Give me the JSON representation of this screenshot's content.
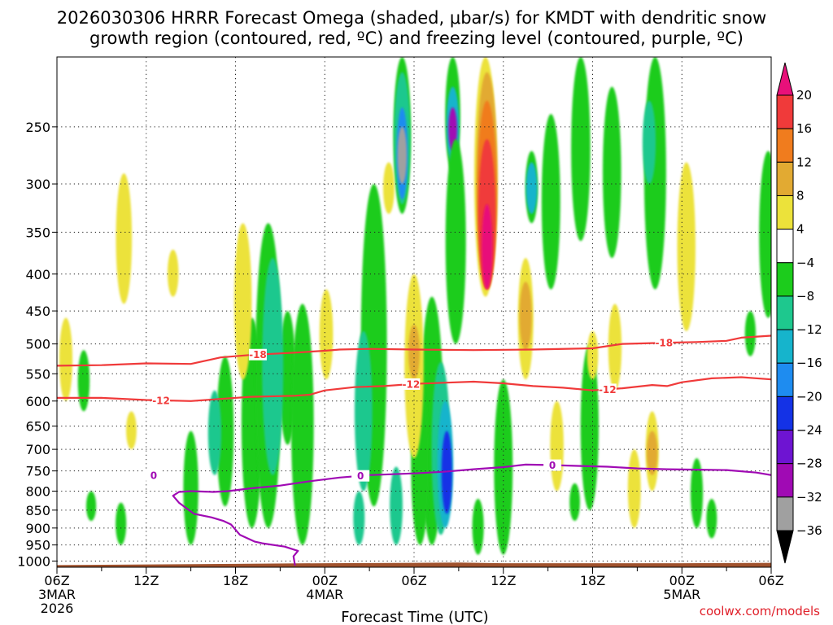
{
  "chart_data": {
    "type": "heatmap",
    "title_line1": "2026030306 HRRR Forecast Omega (shaded, μbar/s) for KMDT with dendritic snow",
    "title_line2": "growth region (contoured, red, ºC) and freezing level (contoured, purple, ºC)",
    "xlabel": "Forecast Time (UTC)",
    "credit": "coolwx.com/models",
    "y_axis": {
      "scale": "log-pressure",
      "reversed": true,
      "ylim": [
        200,
        1020
      ],
      "ticks": [
        250,
        300,
        350,
        400,
        450,
        500,
        550,
        600,
        650,
        700,
        750,
        800,
        850,
        900,
        950,
        1000
      ]
    },
    "x_axis": {
      "xlim": [
        0,
        48
      ],
      "ticks": [
        {
          "hour": 0,
          "label": "06Z",
          "date": "3MAR",
          "year": "2026"
        },
        {
          "hour": 6,
          "label": "12Z"
        },
        {
          "hour": 12,
          "label": "18Z"
        },
        {
          "hour": 18,
          "label": "00Z",
          "date": "4MAR"
        },
        {
          "hour": 24,
          "label": "06Z"
        },
        {
          "hour": 30,
          "label": "12Z"
        },
        {
          "hour": 36,
          "label": "18Z"
        },
        {
          "hour": 42,
          "label": "00Z",
          "date": "5MAR"
        },
        {
          "hour": 48,
          "label": "06Z"
        }
      ],
      "minor_hours": [
        3,
        9,
        15,
        21,
        27,
        33,
        39,
        45
      ]
    },
    "grid": true,
    "colorbar": {
      "placement": "right",
      "labels": [
        "20",
        "16",
        "12",
        "8",
        "4",
        "−4",
        "−8",
        "−12",
        "−16",
        "−20",
        "−24",
        "−28",
        "−32",
        "−36"
      ],
      "label_values": [
        20,
        16,
        12,
        8,
        4,
        -4,
        -8,
        -12,
        -16,
        -20,
        -24,
        -28,
        -32,
        -36
      ],
      "levels": [
        {
          "min": 20,
          "max": 99,
          "color": "#e8107a"
        },
        {
          "min": 16,
          "max": 20,
          "color": "#f03a3a"
        },
        {
          "min": 12,
          "max": 16,
          "color": "#f07c1e"
        },
        {
          "min": 8,
          "max": 12,
          "color": "#e2aa32"
        },
        {
          "min": 4,
          "max": 8,
          "color": "#ece23a"
        },
        {
          "min": -4,
          "max": 4,
          "color": "#ffffff"
        },
        {
          "min": -8,
          "max": -4,
          "color": "#1ccc1c"
        },
        {
          "min": -12,
          "max": -8,
          "color": "#1ec88e"
        },
        {
          "min": -16,
          "max": -12,
          "color": "#16b4cc"
        },
        {
          "min": -20,
          "max": -16,
          "color": "#1e8cf0"
        },
        {
          "min": -24,
          "max": -20,
          "color": "#1432e6"
        },
        {
          "min": -28,
          "max": -24,
          "color": "#6e14d2"
        },
        {
          "min": -32,
          "max": -28,
          "color": "#a00ab4"
        },
        {
          "min": -36,
          "max": -32,
          "color": "#a0a0a0"
        },
        {
          "min": -99,
          "max": -36,
          "color": "#000000"
        }
      ]
    },
    "omega_features": [
      {
        "hour": 21.3,
        "p0": 300,
        "p1": 840,
        "value": -6
      },
      {
        "hour": 20.6,
        "p0": 480,
        "p1": 800,
        "value": -10
      },
      {
        "hour": 11.3,
        "p0": 520,
        "p1": 840,
        "value": -6
      },
      {
        "hour": 10.6,
        "p0": 580,
        "p1": 760,
        "value": -10
      },
      {
        "hour": 13.1,
        "p0": 460,
        "p1": 900,
        "value": -6
      },
      {
        "hour": 15.5,
        "p0": 450,
        "p1": 690,
        "value": -6
      },
      {
        "hour": 14.2,
        "p0": 340,
        "p1": 900,
        "value": -5
      },
      {
        "hour": 14.5,
        "p0": 380,
        "p1": 760,
        "value": -9
      },
      {
        "hour": 16.5,
        "p0": 440,
        "p1": 950,
        "value": -5
      },
      {
        "hour": 23.2,
        "p0": 200,
        "p1": 330,
        "value": -6
      },
      {
        "hour": 23.2,
        "p0": 210,
        "p1": 320,
        "value": -10
      },
      {
        "hour": 23.2,
        "p0": 235,
        "p1": 315,
        "value": -20
      },
      {
        "hour": 23.2,
        "p0": 250,
        "p1": 300,
        "value": -34
      },
      {
        "hour": 26.6,
        "p0": 200,
        "p1": 290,
        "value": -6
      },
      {
        "hour": 26.6,
        "p0": 220,
        "p1": 280,
        "value": -14
      },
      {
        "hour": 26.6,
        "p0": 235,
        "p1": 270,
        "value": -30
      },
      {
        "hour": 25.2,
        "p0": 430,
        "p1": 950,
        "value": -6
      },
      {
        "hour": 25.8,
        "p0": 530,
        "p1": 920,
        "value": -10
      },
      {
        "hour": 26.1,
        "p0": 600,
        "p1": 900,
        "value": -16
      },
      {
        "hour": 26.2,
        "p0": 660,
        "p1": 860,
        "value": -24
      },
      {
        "hour": 24.4,
        "p0": 560,
        "p1": 950,
        "value": -8
      },
      {
        "hour": 22.8,
        "p0": 740,
        "p1": 950,
        "value": -10
      },
      {
        "hour": 20.3,
        "p0": 800,
        "p1": 950,
        "value": -9
      },
      {
        "hour": 31.9,
        "p0": 270,
        "p1": 340,
        "value": -6
      },
      {
        "hour": 31.9,
        "p0": 280,
        "p1": 330,
        "value": -14
      },
      {
        "hour": 35.2,
        "p0": 200,
        "p1": 360,
        "value": -6
      },
      {
        "hour": 33.2,
        "p0": 240,
        "p1": 420,
        "value": -6
      },
      {
        "hour": 35.8,
        "p0": 500,
        "p1": 850,
        "value": -6
      },
      {
        "hour": 37.3,
        "p0": 220,
        "p1": 380,
        "value": -6
      },
      {
        "hour": 40.2,
        "p0": 200,
        "p1": 420,
        "value": -6
      },
      {
        "hour": 39.8,
        "p0": 230,
        "p1": 300,
        "value": -10
      },
      {
        "hour": 43.0,
        "p0": 720,
        "p1": 900,
        "value": -6
      },
      {
        "hour": 44.0,
        "p0": 820,
        "p1": 930,
        "value": -6
      },
      {
        "hour": 47.8,
        "p0": 270,
        "p1": 460,
        "value": -6
      },
      {
        "hour": 46.6,
        "p0": 450,
        "p1": 520,
        "value": -6
      },
      {
        "hour": 1.8,
        "p0": 510,
        "p1": 620,
        "value": -6
      },
      {
        "hour": 2.3,
        "p0": 800,
        "p1": 880,
        "value": -6
      },
      {
        "hour": 4.3,
        "p0": 830,
        "p1": 950,
        "value": -6
      },
      {
        "hour": 9.0,
        "p0": 660,
        "p1": 950,
        "value": -6
      },
      {
        "hour": 30.0,
        "p0": 560,
        "p1": 980,
        "value": -6
      },
      {
        "hour": 34.8,
        "p0": 780,
        "p1": 880,
        "value": -6
      },
      {
        "hour": 28.3,
        "p0": 820,
        "p1": 980,
        "value": -6
      },
      {
        "hour": 26.8,
        "p0": 260,
        "p1": 500,
        "value": -6
      },
      {
        "hour": 4.5,
        "p0": 290,
        "p1": 440,
        "value": 6
      },
      {
        "hour": 7.8,
        "p0": 370,
        "p1": 430,
        "value": 6
      },
      {
        "hour": 12.5,
        "p0": 340,
        "p1": 560,
        "value": 6
      },
      {
        "hour": 18.1,
        "p0": 420,
        "p1": 560,
        "value": 6
      },
      {
        "hour": 22.3,
        "p0": 280,
        "p1": 330,
        "value": 6
      },
      {
        "hour": 24.0,
        "p0": 400,
        "p1": 720,
        "value": 6
      },
      {
        "hour": 24.0,
        "p0": 470,
        "p1": 560,
        "value": 10
      },
      {
        "hour": 28.8,
        "p0": 200,
        "p1": 430,
        "value": 6
      },
      {
        "hour": 28.9,
        "p0": 210,
        "p1": 420,
        "value": 10
      },
      {
        "hour": 28.9,
        "p0": 230,
        "p1": 420,
        "value": 14
      },
      {
        "hour": 28.9,
        "p0": 260,
        "p1": 420,
        "value": 18
      },
      {
        "hour": 28.9,
        "p0": 320,
        "p1": 420,
        "value": 22
      },
      {
        "hour": 31.5,
        "p0": 380,
        "p1": 560,
        "value": 6
      },
      {
        "hour": 31.5,
        "p0": 410,
        "p1": 510,
        "value": 10
      },
      {
        "hour": 33.6,
        "p0": 600,
        "p1": 800,
        "value": 6
      },
      {
        "hour": 37.5,
        "p0": 440,
        "p1": 580,
        "value": 6
      },
      {
        "hour": 40.0,
        "p0": 620,
        "p1": 800,
        "value": 6
      },
      {
        "hour": 40.0,
        "p0": 660,
        "p1": 760,
        "value": 10
      },
      {
        "hour": 42.3,
        "p0": 280,
        "p1": 480,
        "value": 6
      },
      {
        "hour": 38.8,
        "p0": 700,
        "p1": 900,
        "value": 6
      },
      {
        "hour": 0.6,
        "p0": 460,
        "p1": 600,
        "value": 6
      },
      {
        "hour": 5.0,
        "p0": 620,
        "p1": 700,
        "value": 6
      },
      {
        "hour": 36.0,
        "p0": 480,
        "p1": 560,
        "value": 6
      }
    ],
    "dgz_contours": [
      {
        "label": "-18",
        "label_hours": [
          13.5,
          40.8
        ],
        "points": [
          [
            0,
            536
          ],
          [
            3,
            535
          ],
          [
            6,
            532
          ],
          [
            9,
            533
          ],
          [
            11,
            522
          ],
          [
            13,
            518
          ],
          [
            16,
            514
          ],
          [
            18,
            511
          ],
          [
            19,
            509
          ],
          [
            21,
            508
          ],
          [
            24,
            509
          ],
          [
            28,
            510
          ],
          [
            32,
            509
          ],
          [
            36,
            507
          ],
          [
            38,
            500
          ],
          [
            41,
            498
          ],
          [
            43,
            497
          ],
          [
            45,
            495
          ],
          [
            46,
            490
          ],
          [
            48,
            487
          ]
        ]
      },
      {
        "label": "-12",
        "label_hours": [
          7.0,
          23.8,
          37.0
        ],
        "points": [
          [
            0,
            594
          ],
          [
            3,
            594
          ],
          [
            6,
            598
          ],
          [
            9,
            600
          ],
          [
            11,
            596
          ],
          [
            13,
            592
          ],
          [
            16,
            590
          ],
          [
            17,
            588
          ],
          [
            18,
            580
          ],
          [
            20,
            574
          ],
          [
            22,
            572
          ],
          [
            24,
            568
          ],
          [
            26,
            566
          ],
          [
            28,
            564
          ],
          [
            30,
            567
          ],
          [
            32,
            572
          ],
          [
            34,
            575
          ],
          [
            36,
            580
          ],
          [
            38,
            576
          ],
          [
            40,
            570
          ],
          [
            41,
            572
          ],
          [
            42,
            565
          ],
          [
            44,
            558
          ],
          [
            46,
            556
          ],
          [
            48,
            560
          ]
        ]
      }
    ],
    "freezing_level": {
      "label": "0",
      "label_hours": [
        6.5,
        20.4,
        33.3
      ],
      "points": [
        [
          16,
          1015
        ],
        [
          15.9,
          985
        ],
        [
          16.2,
          968
        ],
        [
          15.3,
          955
        ],
        [
          13.8,
          945
        ],
        [
          13.3,
          940
        ],
        [
          12.3,
          920
        ],
        [
          11.7,
          890
        ],
        [
          11.2,
          880
        ],
        [
          10.4,
          870
        ],
        [
          9.2,
          860
        ],
        [
          8.2,
          830
        ],
        [
          7.8,
          812
        ],
        [
          8.2,
          802
        ],
        [
          9.0,
          800
        ],
        [
          10.5,
          802
        ],
        [
          11.5,
          800
        ],
        [
          13,
          793
        ],
        [
          15,
          786
        ],
        [
          17,
          775
        ],
        [
          19,
          766
        ],
        [
          21,
          760
        ],
        [
          24,
          756
        ],
        [
          26,
          752
        ],
        [
          28,
          746
        ],
        [
          30,
          741
        ],
        [
          31.5,
          735
        ],
        [
          33,
          736
        ],
        [
          35,
          738
        ],
        [
          37,
          740
        ],
        [
          39,
          744
        ],
        [
          41,
          746
        ],
        [
          43,
          747
        ],
        [
          45,
          748
        ],
        [
          47,
          754
        ],
        [
          48,
          760
        ]
      ]
    },
    "terrain": {
      "color": "#a0522d",
      "points": [
        [
          0,
          1013
        ],
        [
          6,
          1011
        ],
        [
          12,
          1009
        ],
        [
          18,
          1007
        ],
        [
          24,
          1006
        ],
        [
          27,
          1005
        ],
        [
          30,
          1007
        ],
        [
          36,
          1007
        ],
        [
          42,
          1007
        ],
        [
          48,
          1006
        ]
      ]
    },
    "colors": {
      "dgz_contour": "#f03a3a",
      "freezing_contour": "#a00ab4"
    }
  }
}
